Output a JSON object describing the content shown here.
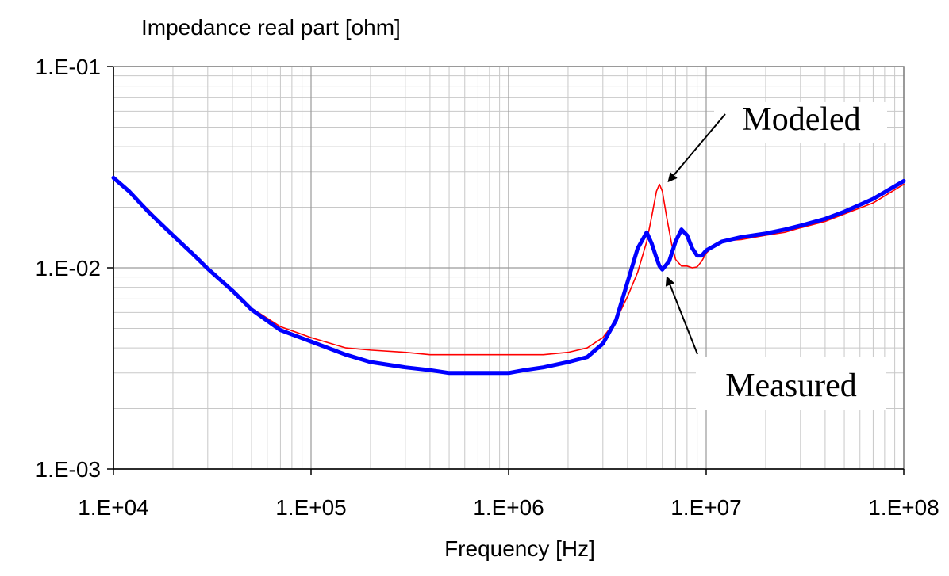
{
  "chart_data": {
    "type": "line",
    "title": "Impedance real part [ohm]",
    "xlabel": "Frequency [Hz]",
    "ylabel": "",
    "xscale": "log",
    "yscale": "log",
    "xlim": [
      10000,
      100000000
    ],
    "ylim": [
      0.001,
      0.1
    ],
    "xticks": [
      "1.E+04",
      "1.E+05",
      "1.E+06",
      "1.E+07",
      "1.E+08"
    ],
    "yticks": [
      "1.E-01",
      "1.E-02",
      "1.E-03"
    ],
    "grid": true,
    "series": [
      {
        "id": "modeled",
        "color": "#ff0000",
        "x": [
          10000,
          12000,
          15000,
          20000,
          25000,
          30000,
          40000,
          50000,
          70000,
          100000,
          150000,
          200000,
          300000,
          400000,
          500000,
          700000,
          1000000,
          1500000,
          2000000,
          2500000,
          3000000,
          3500000,
          4000000,
          4500000,
          5000000,
          5300000,
          5600000,
          5800000,
          6000000,
          6300000,
          6700000,
          7000000,
          7500000,
          8000000,
          8500000,
          9000000,
          9500000,
          10000000,
          11000000,
          12000000,
          15000000,
          20000000,
          25000000,
          30000000,
          40000000,
          50000000,
          70000000,
          100000000
        ],
        "y": [
          0.028,
          0.024,
          0.0195,
          0.0145,
          0.0118,
          0.0099,
          0.0077,
          0.0063,
          0.0051,
          0.0045,
          0.004,
          0.0039,
          0.0038,
          0.0037,
          0.0037,
          0.0037,
          0.0037,
          0.0037,
          0.0038,
          0.004,
          0.0045,
          0.0055,
          0.0072,
          0.0095,
          0.0135,
          0.018,
          0.024,
          0.026,
          0.024,
          0.018,
          0.013,
          0.011,
          0.0102,
          0.0102,
          0.01,
          0.0101,
          0.0108,
          0.0118,
          0.013,
          0.0136,
          0.0138,
          0.0145,
          0.015,
          0.0158,
          0.017,
          0.0185,
          0.021,
          0.026
        ]
      },
      {
        "id": "measured",
        "color": "#0000ff",
        "x": [
          10000,
          12000,
          15000,
          20000,
          25000,
          30000,
          40000,
          50000,
          70000,
          100000,
          150000,
          200000,
          300000,
          400000,
          500000,
          700000,
          1000000,
          1200000,
          1500000,
          2000000,
          2500000,
          3000000,
          3500000,
          4000000,
          4500000,
          5000000,
          5300000,
          5600000,
          5800000,
          6000000,
          6500000,
          7000000,
          7500000,
          8000000,
          8500000,
          9000000,
          9500000,
          10000000,
          12000000,
          15000000,
          20000000,
          25000000,
          30000000,
          40000000,
          50000000,
          70000000,
          100000000
        ],
        "y": [
          0.028,
          0.024,
          0.019,
          0.0145,
          0.0118,
          0.0099,
          0.0077,
          0.0062,
          0.0049,
          0.0043,
          0.0037,
          0.0034,
          0.0032,
          0.0031,
          0.003,
          0.003,
          0.003,
          0.0031,
          0.0032,
          0.0034,
          0.0036,
          0.0042,
          0.0055,
          0.0085,
          0.0125,
          0.015,
          0.0132,
          0.0112,
          0.0102,
          0.0098,
          0.0108,
          0.0135,
          0.0155,
          0.0145,
          0.0125,
          0.0115,
          0.0115,
          0.0122,
          0.0135,
          0.0142,
          0.0148,
          0.0155,
          0.0162,
          0.0175,
          0.019,
          0.022,
          0.027
        ]
      }
    ],
    "annotations": [
      {
        "id": "modeled-note",
        "text": "Modeled",
        "x": 6000000,
        "y": 0.026
      },
      {
        "id": "measured-note",
        "text": "Measured",
        "x": 6000000,
        "y": 0.0098
      }
    ]
  }
}
